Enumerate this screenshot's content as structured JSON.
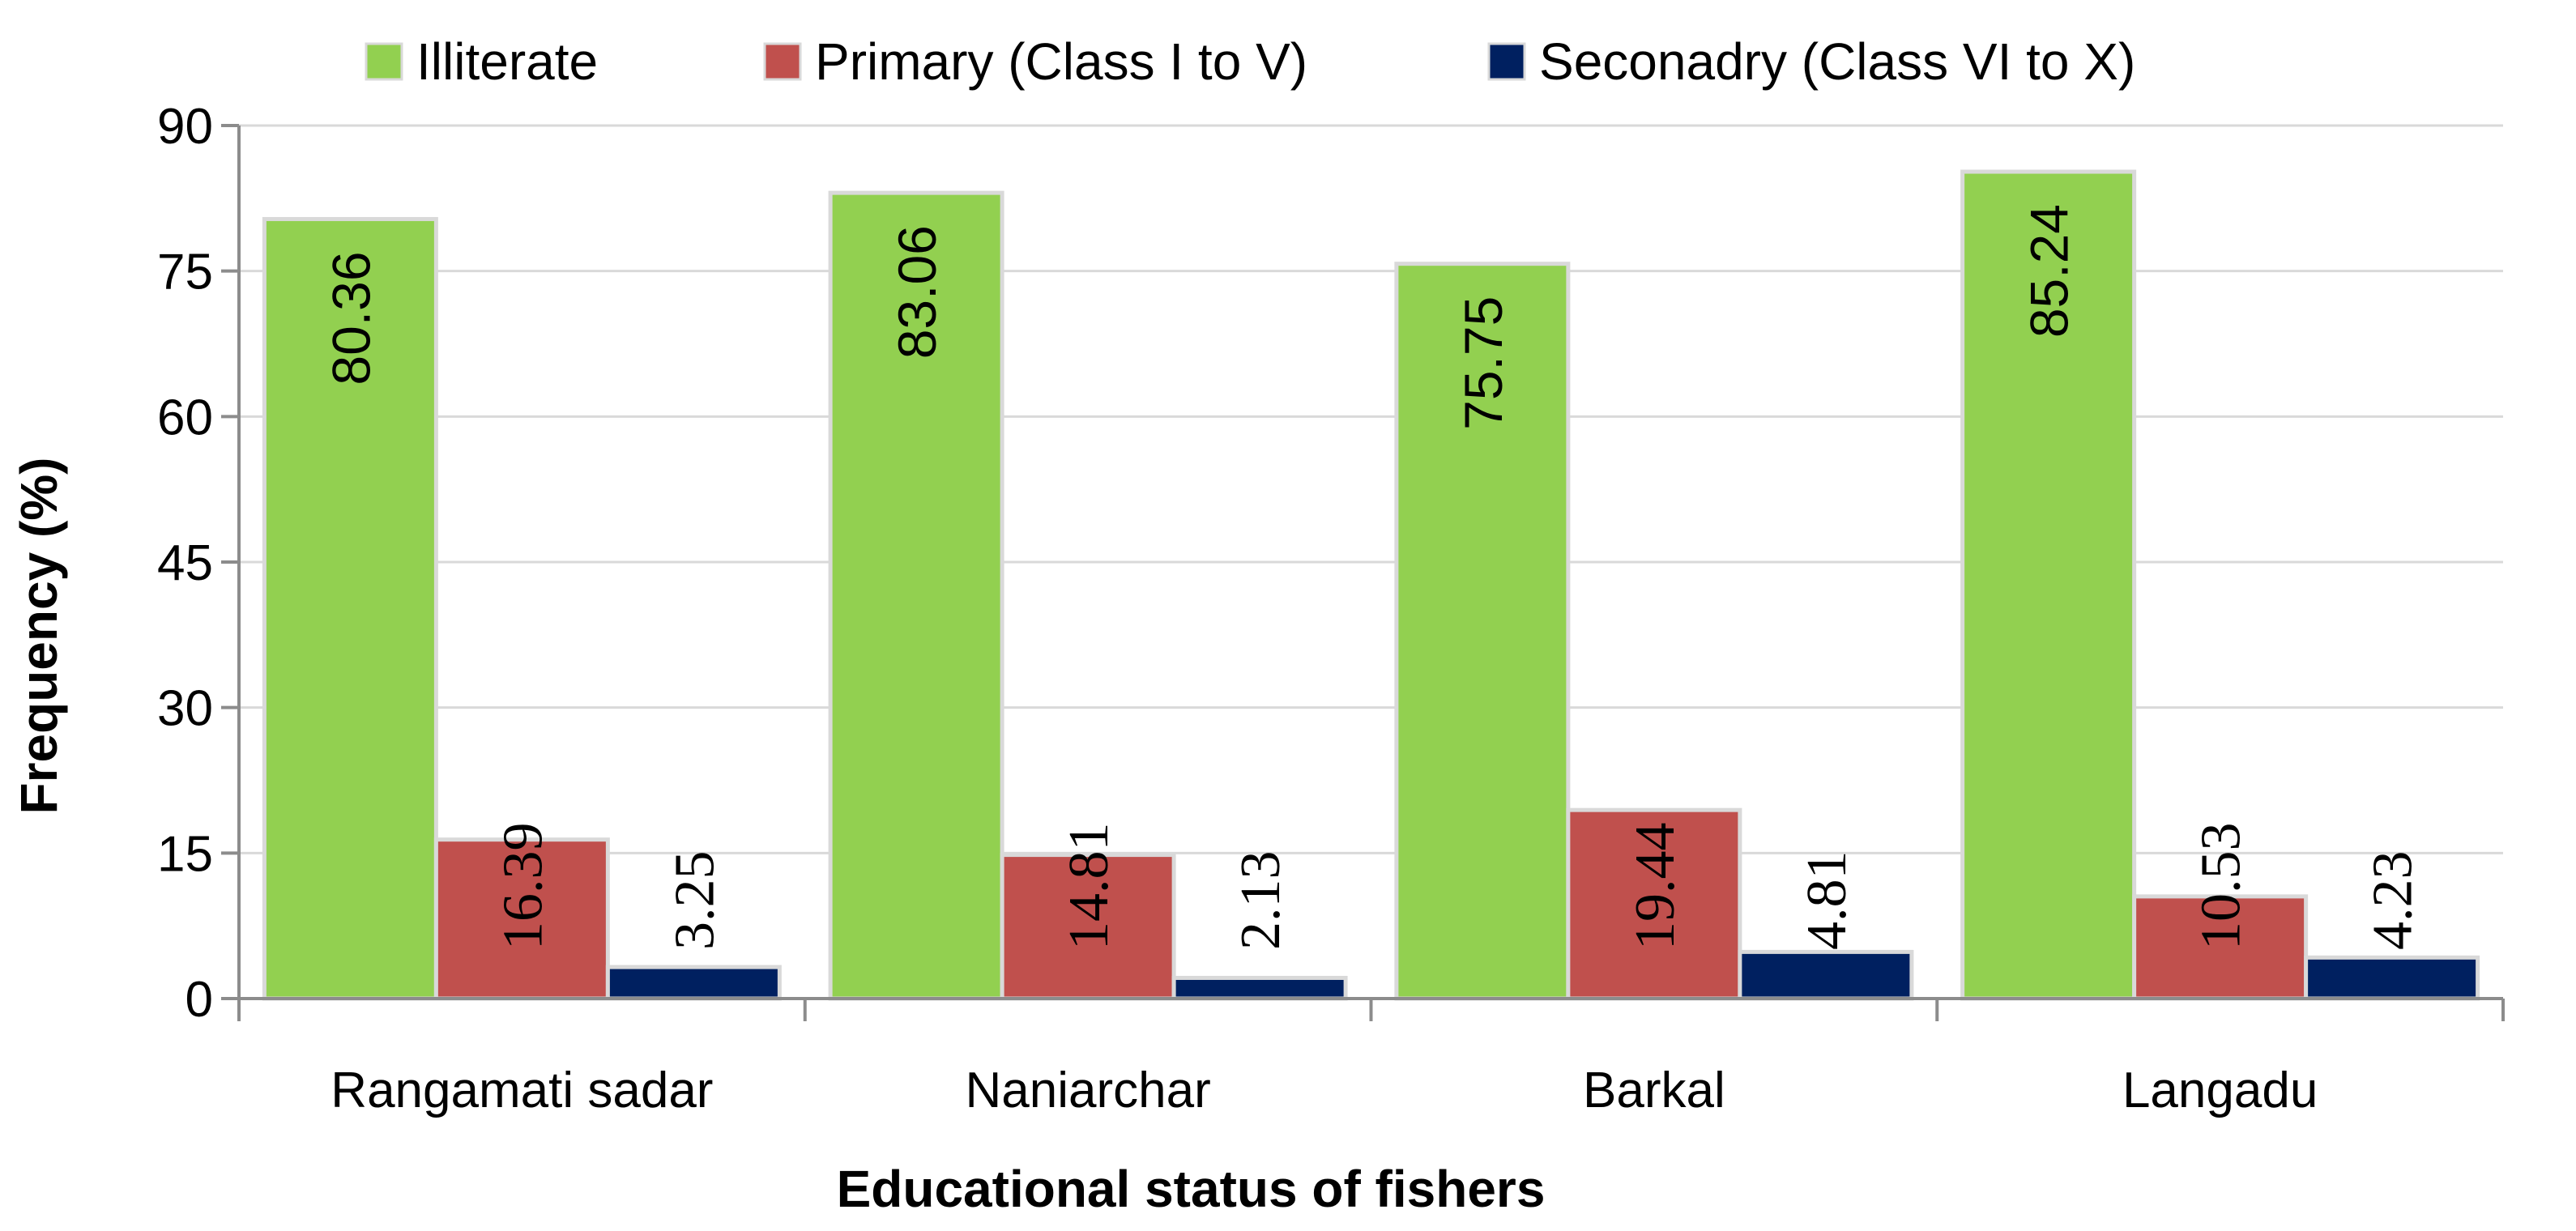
{
  "chart_data": {
    "type": "bar",
    "title": "",
    "xlabel": "Educational status of fishers",
    "ylabel": "Frequency (%)",
    "ylim": [
      0,
      90
    ],
    "yticks": [
      0,
      15,
      30,
      45,
      60,
      75,
      90
    ],
    "grid": true,
    "legend_position": "top",
    "categories": [
      "Rangamati sadar",
      "Naniarchar",
      "Barkal",
      "Langadu"
    ],
    "series": [
      {
        "name": "Illiterate",
        "color": "#92d050",
        "values": [
          80.36,
          83.06,
          75.75,
          85.24
        ]
      },
      {
        "name": "Primary (Class I to V)",
        "color": "#c0504d",
        "values": [
          16.39,
          14.81,
          19.44,
          10.53
        ]
      },
      {
        "name": "Seconadry (Class VI to X)",
        "color": "#002060",
        "values": [
          3.25,
          2.13,
          4.81,
          4.23
        ]
      }
    ]
  }
}
